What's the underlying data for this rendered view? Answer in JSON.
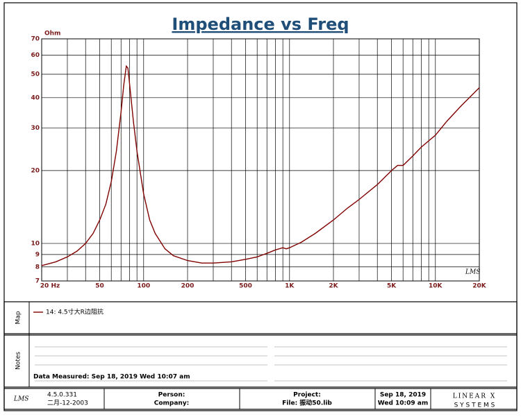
{
  "chart_data": {
    "type": "line",
    "title": "Impedance vs Freq",
    "y_label": "Ohm",
    "x_scale": "log",
    "y_scale": "log",
    "grid": true,
    "xlim": [
      20,
      20000
    ],
    "ylim": [
      7,
      70
    ],
    "xticks": [
      {
        "value": 20,
        "label": "20 Hz"
      },
      50,
      100,
      200,
      500,
      {
        "value": 1000,
        "label": "1K"
      },
      {
        "value": 2000,
        "label": "2K"
      },
      {
        "value": 5000,
        "label": "5K"
      },
      {
        "value": 10000,
        "label": "10K"
      },
      {
        "value": 20000,
        "label": "20K"
      }
    ],
    "x_minor_grid": [
      30,
      40,
      60,
      70,
      80,
      90,
      300,
      400,
      600,
      700,
      800,
      900,
      3000,
      4000,
      6000,
      7000,
      8000,
      9000
    ],
    "yticks": [
      7,
      8,
      9,
      10,
      20,
      30,
      40,
      50,
      60,
      70
    ],
    "x": [
      20,
      25,
      30,
      35,
      40,
      45,
      50,
      55,
      60,
      65,
      70,
      73,
      76,
      78,
      80,
      85,
      90,
      100,
      110,
      120,
      140,
      160,
      200,
      250,
      300,
      400,
      500,
      600,
      700,
      800,
      900,
      950,
      1000,
      1200,
      1500,
      2000,
      2500,
      3000,
      4000,
      5000,
      5500,
      6000,
      7000,
      8000,
      10000,
      12000,
      15000,
      20000
    ],
    "series": [
      {
        "name": "14: 4.5寸大R边阻抗",
        "color": "#800000",
        "values": [
          8.1,
          8.4,
          8.8,
          9.3,
          10.0,
          11.0,
          12.5,
          14.5,
          18,
          24,
          35,
          45,
          54,
          53,
          46,
          32,
          24,
          16,
          12.5,
          11,
          9.5,
          8.9,
          8.5,
          8.3,
          8.3,
          8.4,
          8.6,
          8.8,
          9.1,
          9.4,
          9.6,
          9.5,
          9.6,
          10.1,
          11,
          12.5,
          14,
          15.2,
          17.5,
          20,
          21,
          21,
          23,
          25,
          28,
          32,
          37,
          44
        ]
      }
    ],
    "watermark": "LMS"
  },
  "map": {
    "label": "Map"
  },
  "notes": {
    "label": "Notes",
    "measured": "Data Measured: Sep 18, 2019  Wed 10:07 am"
  },
  "footer": {
    "logo": "LMS",
    "version": "4.5.0.331",
    "version_date": "二月-12-2003",
    "person": "Person:",
    "company": "Company:",
    "project": "Project:",
    "file": "File: 振动50.lib",
    "date": "Sep 18, 2019",
    "time": "Wed 10:09 am",
    "brand": "LINEAR X",
    "brand_sub": "S Y S T E M S"
  }
}
